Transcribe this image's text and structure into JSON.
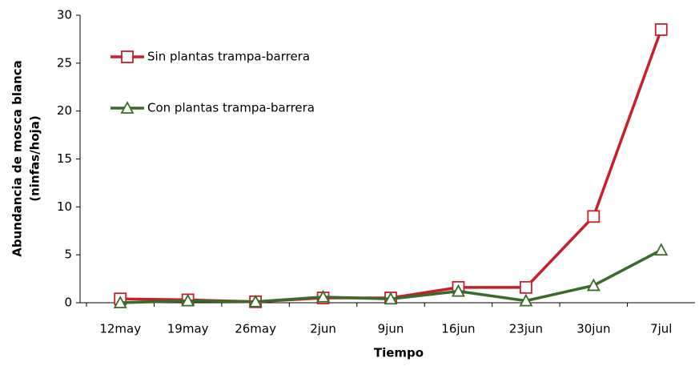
{
  "chart_data": {
    "type": "line",
    "x_label": "Tiempo",
    "y_label": [
      "Abundancia de mosca blanca",
      "(ninfas/hoja)"
    ],
    "categories": [
      "12may",
      "19may",
      "26may",
      "2jun",
      "9jun",
      "16jun",
      "23jun",
      "30jun",
      "7jul"
    ],
    "series": [
      {
        "name": "Sin plantas trampa-barrera",
        "color": "#c8202a",
        "marker": "square",
        "values": [
          0.4,
          0.3,
          0.1,
          0.5,
          0.5,
          1.6,
          1.6,
          9.0,
          28.5
        ]
      },
      {
        "name": "Con plantas trampa-barrera",
        "color": "#3a6b2a",
        "marker": "triangle",
        "values": [
          0.0,
          0.2,
          0.1,
          0.6,
          0.4,
          1.2,
          0.2,
          1.8,
          5.5
        ]
      }
    ],
    "ylim": [
      0,
      30
    ],
    "yticks": [
      0,
      5,
      10,
      15,
      20,
      25,
      30
    ],
    "grid": false
  }
}
